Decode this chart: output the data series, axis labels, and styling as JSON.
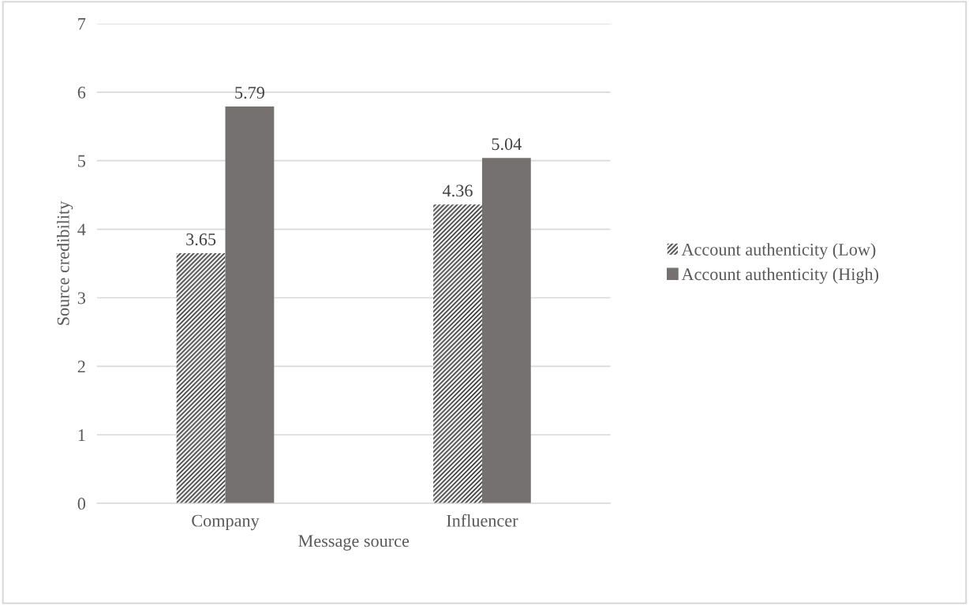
{
  "chart_data": {
    "type": "bar",
    "xlabel": "Message source",
    "ylabel": "Source credibility",
    "categories": [
      "Company",
      "Influencer"
    ],
    "series": [
      {
        "name": "Account authenticity (Low)",
        "color": "#303030",
        "values": [
          3.65,
          4.36
        ]
      },
      {
        "name": "Account authenticity (High)",
        "color": "#767171",
        "values": [
          5.79,
          5.04
        ]
      }
    ],
    "ylim": [
      0,
      7
    ],
    "yticks": [
      0,
      1,
      2,
      3,
      4,
      5,
      6,
      7
    ],
    "grid": "y",
    "legend": "right",
    "data_labels": true
  }
}
